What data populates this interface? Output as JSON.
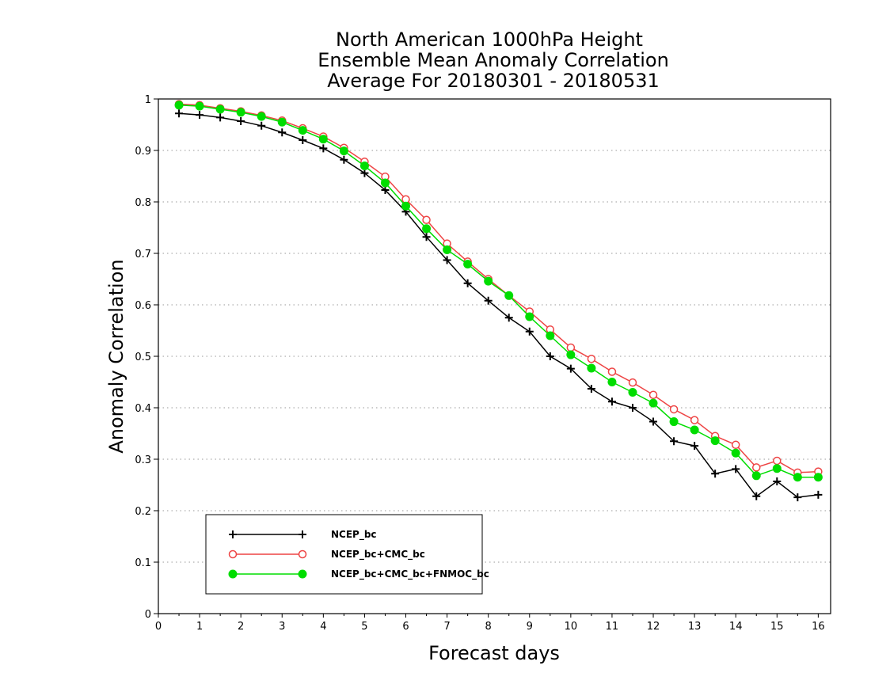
{
  "chart_data": {
    "type": "line",
    "title": [
      "North American 1000hPa Height",
      "Ensemble Mean Anomaly Correlation",
      "Average For 20180301 - 20180531"
    ],
    "xlabel": "Forecast days",
    "ylabel": "Anomaly Correlation",
    "xlim": [
      0,
      16.3
    ],
    "ylim": [
      0,
      1
    ],
    "xticks": [
      0,
      1,
      2,
      3,
      4,
      5,
      6,
      7,
      8,
      9,
      10,
      11,
      12,
      13,
      14,
      15,
      16
    ],
    "yticks": [
      0,
      0.1,
      0.2,
      0.3,
      0.4,
      0.5,
      0.6,
      0.7,
      0.8,
      0.9,
      1
    ],
    "ytick_labels": [
      "0",
      "0.1",
      "0.2",
      "0.3",
      "0.4",
      "0.5",
      "0.6",
      "0.7",
      "0.8",
      "0.9",
      "1"
    ],
    "grid": "horizontal dotted",
    "legend_position": "lower-left",
    "x": [
      0.5,
      1,
      1.5,
      2,
      2.5,
      3,
      3.5,
      4,
      4.5,
      5,
      5.5,
      6,
      6.5,
      7,
      7.5,
      8,
      8.5,
      9,
      9.5,
      10,
      10.5,
      11,
      11.5,
      12,
      12.5,
      13,
      13.5,
      14,
      14.5,
      15,
      15.5,
      16
    ],
    "series": [
      {
        "name": "NCEP_bc",
        "color": "#000000",
        "marker": "plus",
        "values": [
          0.972,
          0.969,
          0.964,
          0.957,
          0.948,
          0.935,
          0.92,
          0.904,
          0.882,
          0.856,
          0.823,
          0.781,
          0.732,
          0.687,
          0.642,
          0.608,
          0.575,
          0.548,
          0.5,
          0.476,
          0.437,
          0.412,
          0.4,
          0.373,
          0.335,
          0.326,
          0.272,
          0.281,
          0.228,
          0.257,
          0.226,
          0.231
        ]
      },
      {
        "name": "NCEP_bc+CMC_bc",
        "color": "#ee4444",
        "marker": "open-circle",
        "values": [
          0.99,
          0.988,
          0.982,
          0.976,
          0.968,
          0.958,
          0.943,
          0.927,
          0.905,
          0.878,
          0.849,
          0.805,
          0.765,
          0.719,
          0.684,
          0.65,
          0.618,
          0.587,
          0.552,
          0.517,
          0.495,
          0.47,
          0.449,
          0.425,
          0.397,
          0.376,
          0.345,
          0.328,
          0.284,
          0.297,
          0.274,
          0.276
        ]
      },
      {
        "name": "NCEP_bc+CMC_bc+FNMOC_bc",
        "color": "#00dd00",
        "marker": "filled-circle",
        "values": [
          0.988,
          0.986,
          0.98,
          0.974,
          0.966,
          0.955,
          0.939,
          0.922,
          0.899,
          0.87,
          0.837,
          0.792,
          0.748,
          0.707,
          0.679,
          0.646,
          0.618,
          0.577,
          0.54,
          0.503,
          0.477,
          0.45,
          0.43,
          0.409,
          0.373,
          0.357,
          0.336,
          0.312,
          0.268,
          0.282,
          0.265,
          0.265
        ]
      }
    ]
  }
}
